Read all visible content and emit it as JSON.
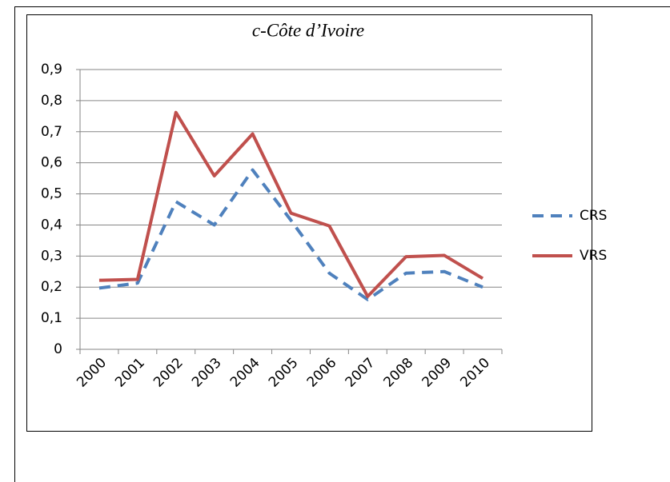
{
  "chart_data": {
    "type": "line",
    "title": "c-Côte d’Ivoire",
    "categories": [
      "2000",
      "2001",
      "2002",
      "2003",
      "2004",
      "2005",
      "2006",
      "2007",
      "2008",
      "2009",
      "2010"
    ],
    "series": [
      {
        "name": "CRS",
        "color": "#4f81bd",
        "line_style": "dashed",
        "values": [
          0.197,
          0.213,
          0.475,
          0.4,
          0.577,
          0.415,
          0.245,
          0.16,
          0.245,
          0.25,
          0.2
        ]
      },
      {
        "name": "VRS",
        "color": "#c0504d",
        "line_style": "solid",
        "values": [
          0.222,
          0.225,
          0.762,
          0.558,
          0.693,
          0.438,
          0.397,
          0.17,
          0.298,
          0.302,
          0.228
        ]
      }
    ],
    "ylim": [
      0,
      0.9
    ],
    "yticks": [
      0,
      {
        "value": 0.1,
        "label": "0,1"
      },
      {
        "value": 0.2,
        "label": "0,2"
      },
      {
        "value": 0.3,
        "label": "0,3"
      },
      {
        "value": 0.4,
        "label": "0,4"
      },
      {
        "value": 0.5,
        "label": "0,5"
      },
      {
        "value": 0.6,
        "label": "0,6"
      },
      {
        "value": 0.7,
        "label": "0,7"
      },
      {
        "value": 0.8,
        "label": "0,8"
      },
      {
        "value": 0.9,
        "label": "0,9"
      }
    ],
    "grid": true,
    "legend": "right"
  }
}
